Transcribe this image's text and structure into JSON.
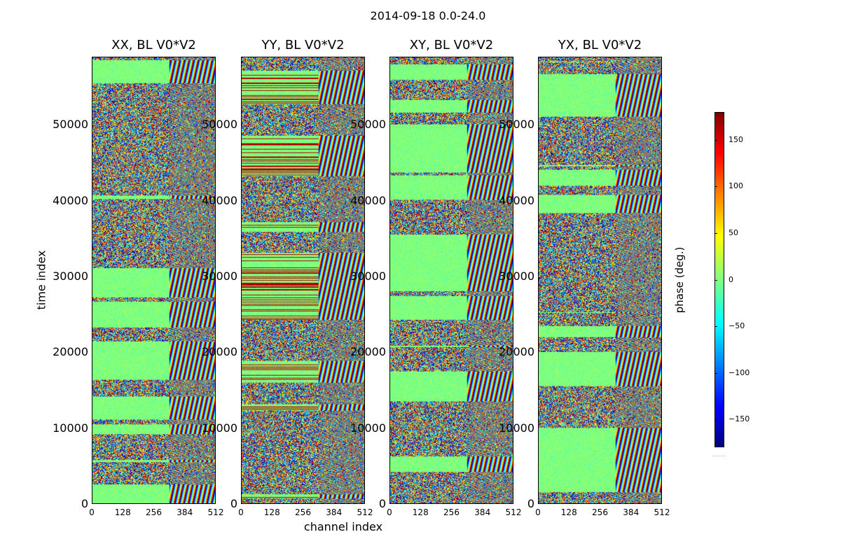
{
  "suptitle": "2014-09-18 0.0-24.0",
  "chart_data": {
    "type": "heatmap",
    "title": "2014-09-18 0.0-24.0",
    "xlabel": "channel index",
    "ylabel": "time index",
    "xlim": [
      0,
      512
    ],
    "ylim": [
      0,
      59000
    ],
    "x_ticks": [
      "0",
      "128",
      "256",
      "384",
      "512"
    ],
    "y_ticks": [
      "0",
      "10000",
      "20000",
      "30000",
      "40000",
      "50000"
    ],
    "panels": [
      {
        "title": "XX, BL V0*V2",
        "polarization": "XX"
      },
      {
        "title": "YY, BL V0*V2",
        "polarization": "YY"
      },
      {
        "title": "XY, BL V0*V2",
        "polarization": "XY"
      },
      {
        "title": "YX, BL V0*V2",
        "polarization": "YX"
      }
    ],
    "colorbar": {
      "label": "phase (deg.)",
      "range": [
        -180,
        180
      ],
      "ticks": [
        "150",
        "100",
        "50",
        "0",
        "−50",
        "−100",
        "−150"
      ],
      "colormap": "jet"
    }
  }
}
